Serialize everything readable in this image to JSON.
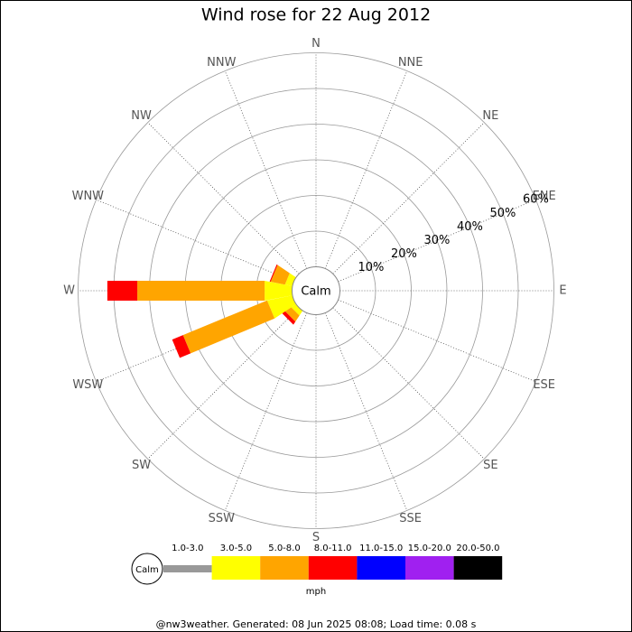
{
  "chart_data": {
    "type": "windrose",
    "title": "Wind rose for 22 Aug 2012",
    "directions": [
      "N",
      "NNE",
      "NE",
      "ENE",
      "E",
      "ESE",
      "SE",
      "SSE",
      "S",
      "SSW",
      "SW",
      "WSW",
      "W",
      "WNW",
      "NW",
      "NNW"
    ],
    "series": [
      {
        "name": "1.0-3.0",
        "color": "#999999",
        "values": [
          0,
          0,
          0,
          0,
          0,
          0,
          0,
          0,
          0,
          0,
          0,
          0,
          0,
          0,
          0,
          0
        ]
      },
      {
        "name": "3.0-5.0",
        "color": "#ffff00",
        "values": [
          0,
          0,
          0,
          0,
          0,
          0,
          0,
          0,
          0,
          0,
          1.5,
          7,
          7.7,
          2,
          0,
          0
        ]
      },
      {
        "name": "5.0-8.0",
        "color": "#ffa500",
        "values": [
          0,
          0,
          0,
          0,
          0,
          0,
          0,
          0,
          0,
          0,
          2,
          25.5,
          35.7,
          4,
          0,
          0
        ]
      },
      {
        "name": "8.0-11.0",
        "color": "#ff0000",
        "values": [
          0,
          0,
          0,
          0,
          0,
          0,
          0,
          0,
          0,
          0,
          1,
          3.3,
          8.4,
          0.3,
          0,
          0
        ]
      },
      {
        "name": "11.0-15.0",
        "color": "#0000ff",
        "values": [
          0,
          0,
          0,
          0,
          0,
          0,
          0,
          0,
          0,
          0,
          0,
          0,
          0,
          0,
          0,
          0
        ]
      },
      {
        "name": "15.0-20.0",
        "color": "#a020f0",
        "values": [
          0,
          0,
          0,
          0,
          0,
          0,
          0,
          0,
          0,
          0,
          0,
          0,
          0,
          0,
          0,
          0
        ]
      },
      {
        "name": "20.0-50.0",
        "color": "#000000",
        "values": [
          0,
          0,
          0,
          0,
          0,
          0,
          0,
          0,
          0,
          0,
          0,
          0,
          0,
          0,
          0,
          0
        ]
      }
    ],
    "rlim": [
      0,
      60
    ],
    "rticks": [
      {
        "value": 10,
        "label": "10%"
      },
      {
        "value": 20,
        "label": "20%"
      },
      {
        "value": 30,
        "label": "30%"
      },
      {
        "value": 40,
        "label": "40%"
      },
      {
        "value": 50,
        "label": "50%"
      },
      {
        "value": 60,
        "label": "60%"
      }
    ],
    "calm_label": "Calm",
    "unit": "mph",
    "footer": "@nw3weather. Generated: 08 Jun 2025 08:08; Load time: 0.08 s"
  }
}
